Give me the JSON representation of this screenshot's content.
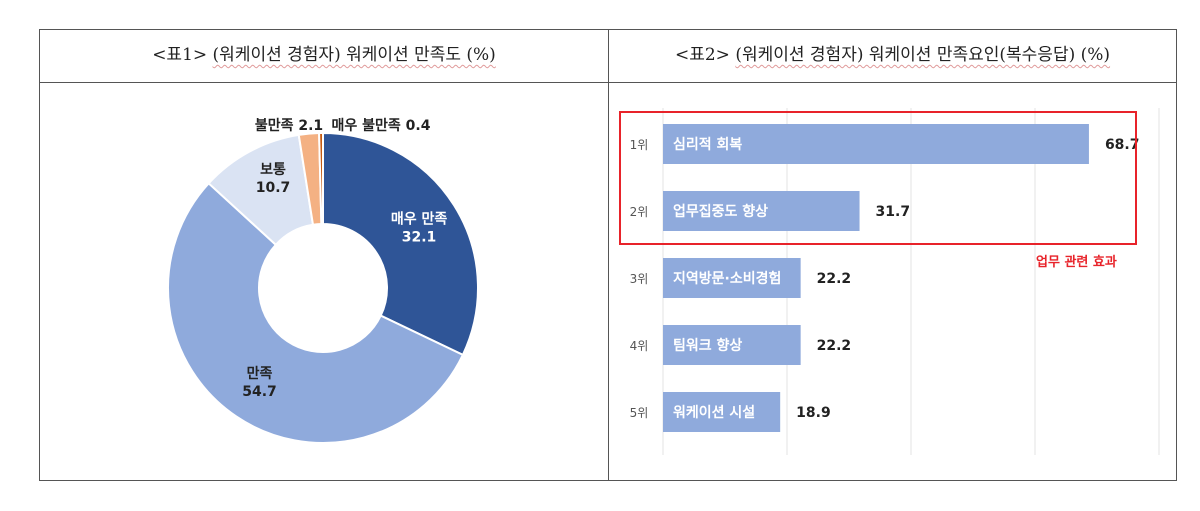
{
  "panels": [
    {
      "title_prefix": "<표1>",
      "title_main": "(워케이션 경험자) 워케이션 만족도 (%)"
    },
    {
      "title_prefix": "<표2>",
      "title_main": "(워케이션 경험자) 워케이션 만족요인(복수응답) (%)"
    }
  ],
  "highlight": {
    "label": "업무 관련 효과"
  },
  "colors": {
    "very_satisfied": "#2f5597",
    "satisfied": "#8faadc",
    "neutral": "#dae3f3",
    "dissatisfied": "#f4b183",
    "very_dissatisfied": "#c55a11",
    "bar": "#8faadc",
    "highlight": "#e8232a"
  },
  "chart_data": [
    {
      "type": "pie",
      "subtype": "donut",
      "title": "(워케이션 경험자) 워케이션 만족도 (%)",
      "slices": [
        {
          "label": "매우 만족",
          "value": 32.1,
          "value_text": "32.1",
          "color": "#2f5597"
        },
        {
          "label": "만족",
          "value": 54.7,
          "value_text": "54.7",
          "color": "#8faadc"
        },
        {
          "label": "보통",
          "value": 10.7,
          "value_text": "10.7",
          "color": "#dae3f3"
        },
        {
          "label": "불만족",
          "value": 2.1,
          "value_text": "2.1",
          "color": "#f4b183"
        },
        {
          "label": "매우 불만족",
          "value": 0.4,
          "value_text": "0.4",
          "color": "#c55a11"
        }
      ]
    },
    {
      "type": "bar",
      "orientation": "horizontal",
      "title": "(워케이션 경험자) 워케이션 만족요인(복수응답) (%)",
      "xlim": [
        0,
        100
      ],
      "grid": true,
      "bars": [
        {
          "rank": "1위",
          "label": "심리적 회복",
          "value": 68.7,
          "value_text": "68.7"
        },
        {
          "rank": "2위",
          "label": "업무집중도 향상",
          "value": 31.7,
          "value_text": "31.7"
        },
        {
          "rank": "3위",
          "label": "지역방문·소비경험",
          "value": 22.2,
          "value_text": "22.2"
        },
        {
          "rank": "4위",
          "label": "팀워크 향상",
          "value": 22.2,
          "value_text": "22.2"
        },
        {
          "rank": "5위",
          "label": "워케이션 시설",
          "value": 18.9,
          "value_text": "18.9"
        }
      ]
    }
  ]
}
